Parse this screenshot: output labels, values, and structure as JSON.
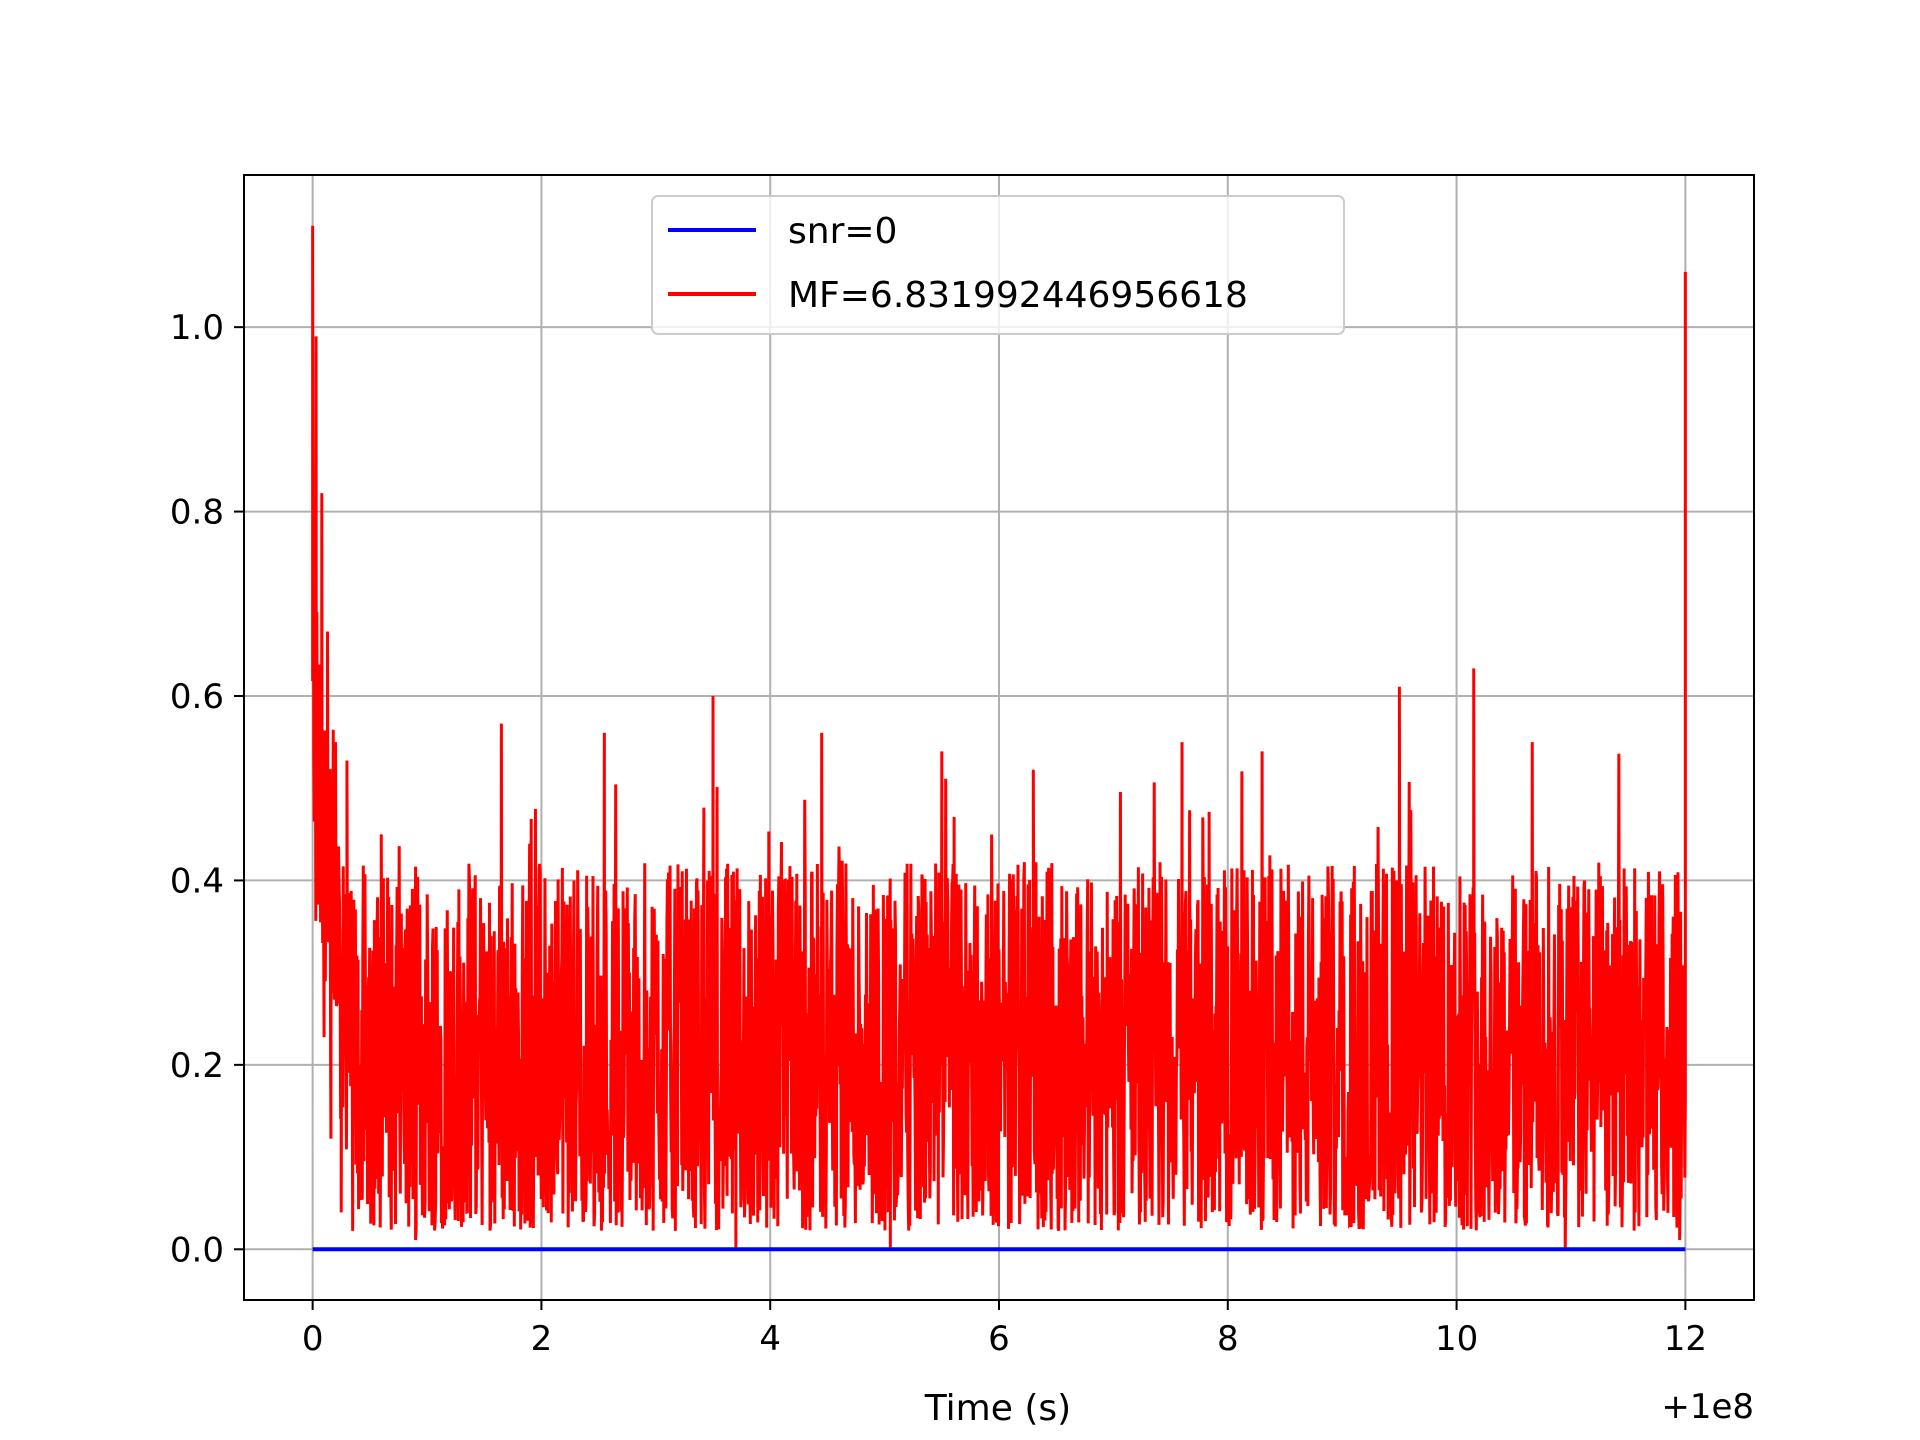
{
  "chart_data": {
    "type": "line",
    "title": "",
    "xlabel": "Time (s)",
    "ylabel": "",
    "x_offset_label": "+1e8",
    "xlim": [
      -0.6,
      12.6
    ],
    "ylim": [
      -0.055,
      1.165
    ],
    "x_ticks": [
      0,
      2,
      4,
      6,
      8,
      10,
      12
    ],
    "x_tick_labels": [
      "0",
      "2",
      "4",
      "6",
      "8",
      "10",
      "12"
    ],
    "y_ticks": [
      0.0,
      0.2,
      0.4,
      0.6,
      0.8,
      1.0
    ],
    "y_tick_labels": [
      "0.0",
      "0.2",
      "0.4",
      "0.6",
      "0.8",
      "1.0"
    ],
    "grid": true,
    "legend_position": "top-center",
    "series": [
      {
        "name": "snr=0",
        "color": "#0000ff",
        "x": [
          0,
          12
        ],
        "y": [
          0,
          0
        ]
      },
      {
        "name": "MF=6.831992446956618",
        "color": "#ff0000",
        "x": [
          0,
          0.01,
          0.03,
          0.05,
          0.08,
          0.1,
          0.13,
          0.16,
          0.2,
          0.25,
          0.3,
          0.35,
          0.6,
          0.9,
          1.65,
          2.55,
          3.5,
          3.7,
          4.45,
          5.05,
          5.5,
          6.3,
          7.6,
          8.3,
          9.5,
          10.15,
          10.95,
          11.95,
          12.0
        ],
        "y": [
          1.11,
          0.54,
          0.99,
          0.55,
          0.82,
          0.23,
          0.67,
          0.12,
          0.55,
          0.04,
          0.53,
          0.02,
          0.45,
          0.01,
          0.57,
          0.56,
          0.6,
          0.0,
          0.56,
          0.0,
          0.54,
          0.52,
          0.55,
          0.54,
          0.61,
          0.63,
          0.0,
          0.01,
          1.06
        ],
        "noise_band": [
          0.02,
          0.42
        ]
      }
    ]
  }
}
